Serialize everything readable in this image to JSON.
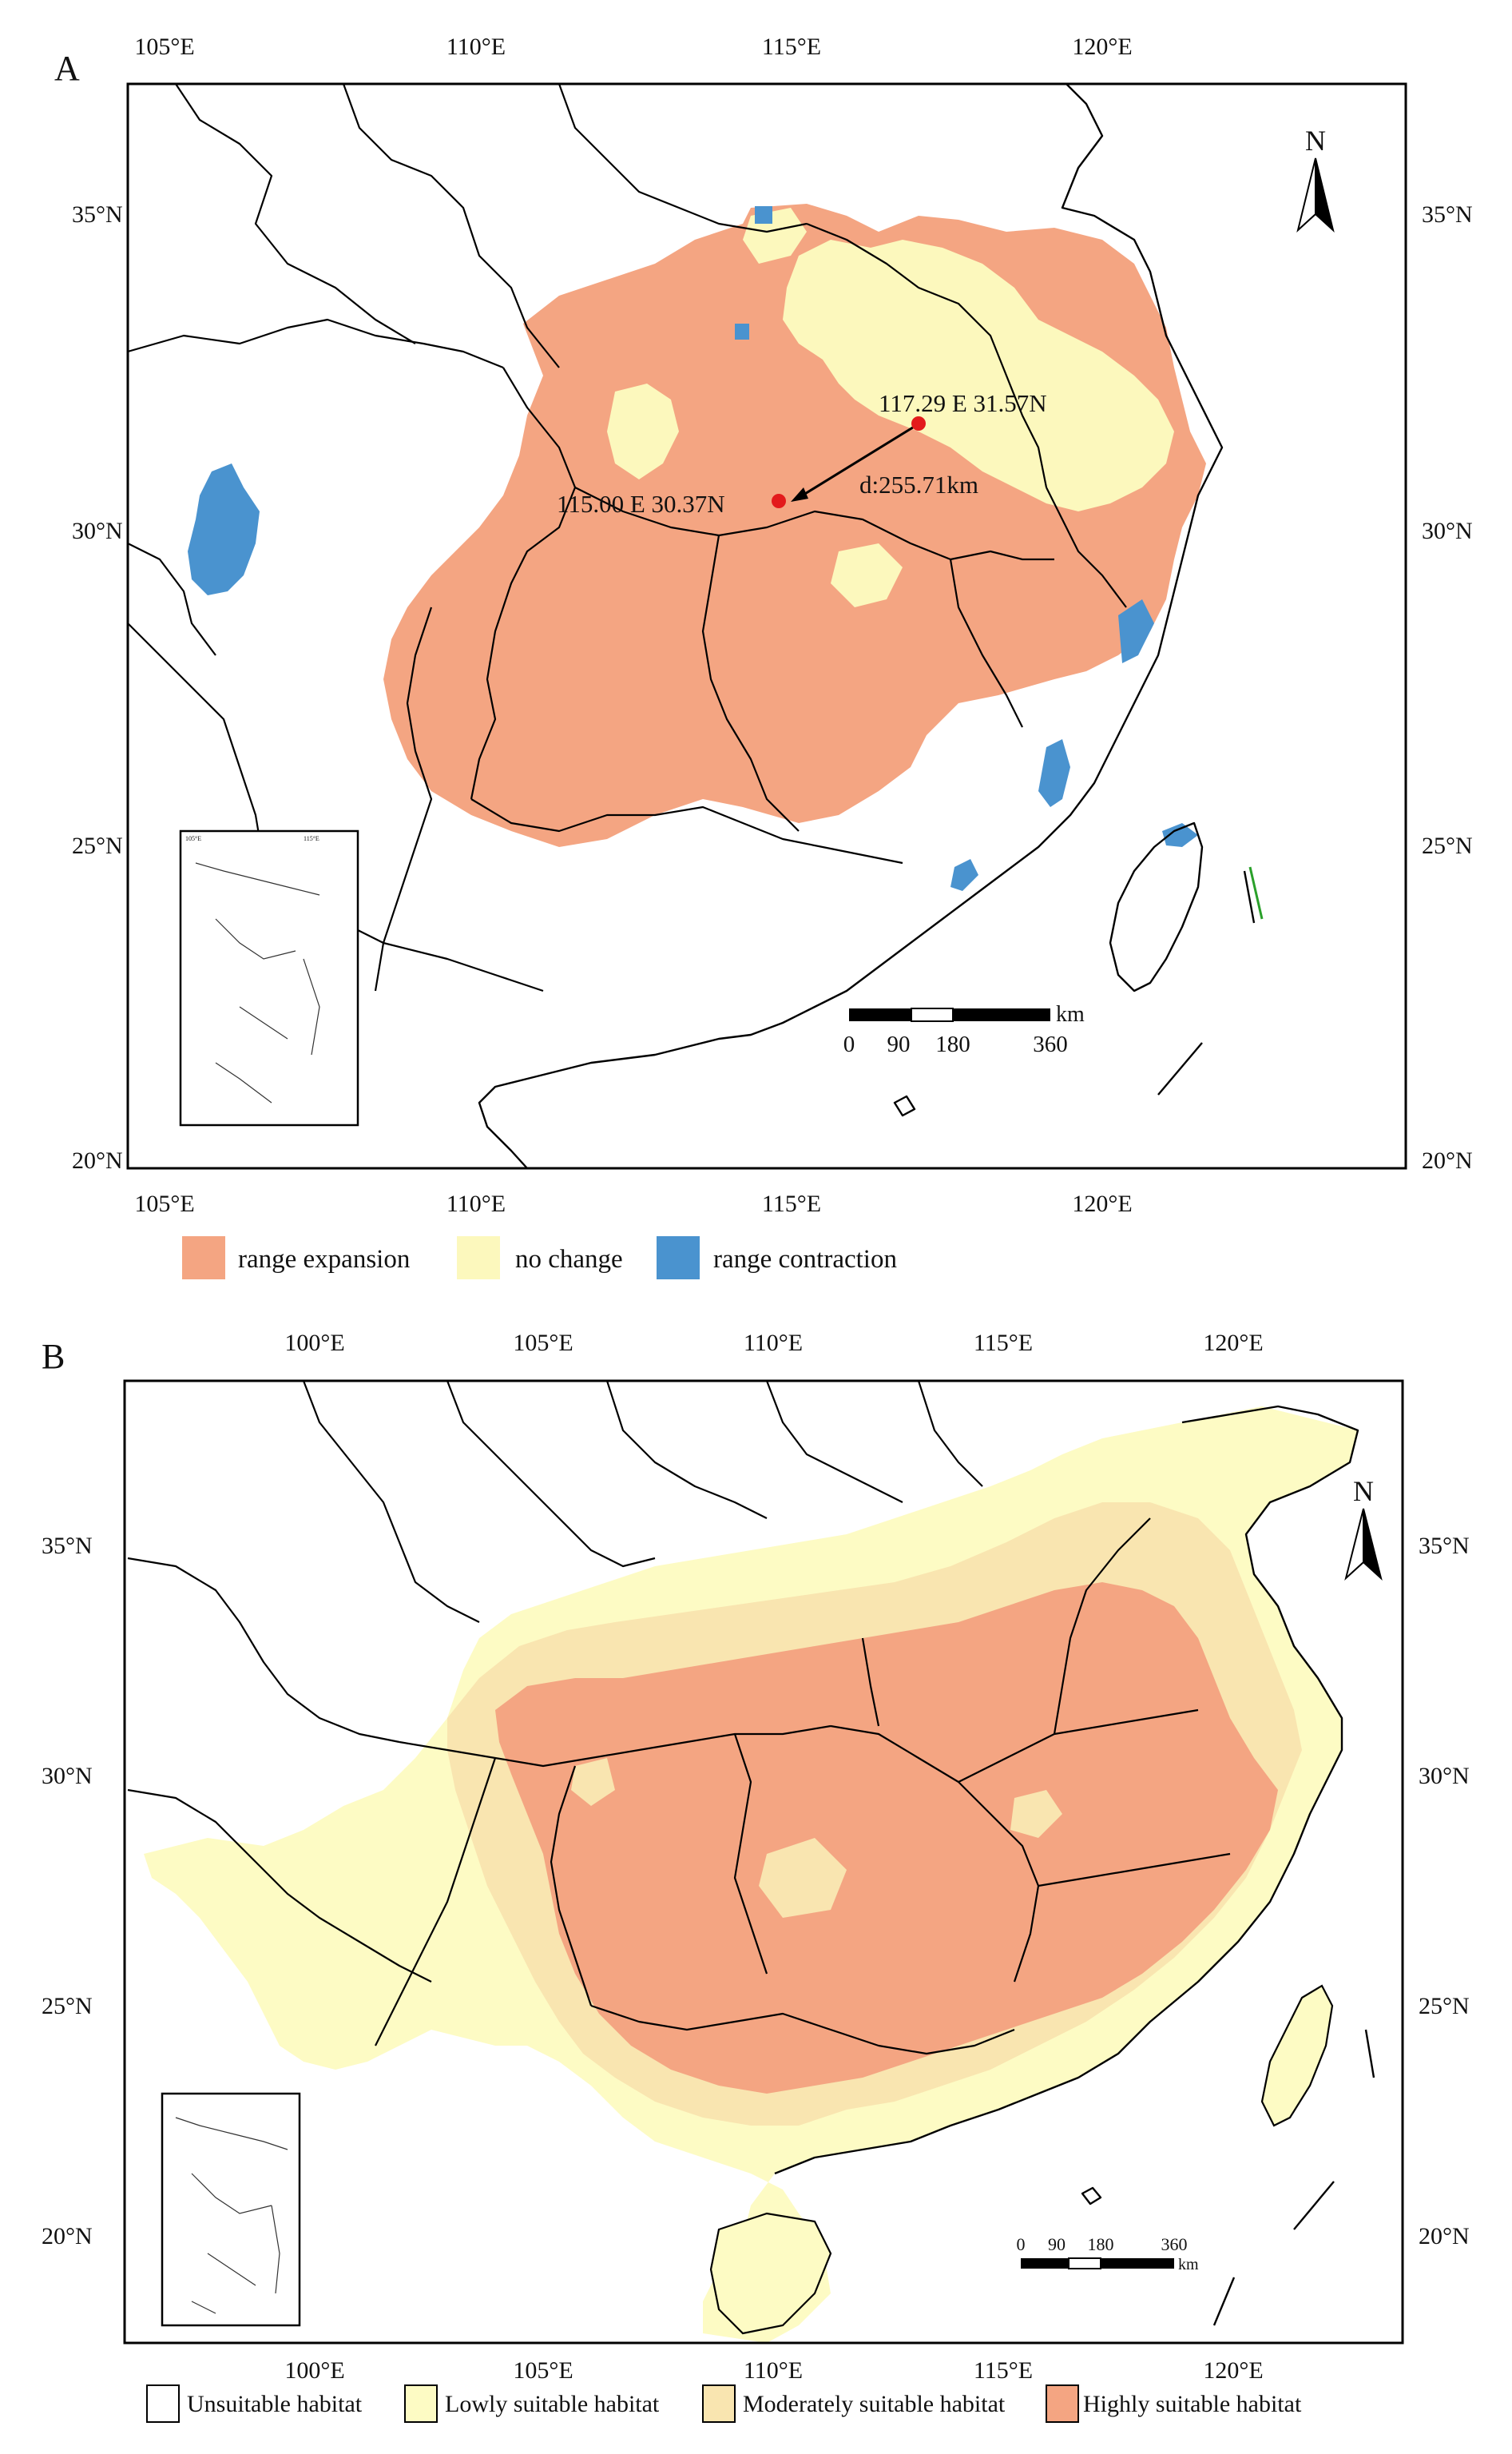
{
  "colors": {
    "range_expansion": "#f4a582",
    "no_change": "#fcf8bd",
    "range_contraction": "#4a93cf",
    "unsuitable": "#ffffff",
    "lowly_suitable": "#fdfbc4",
    "moderately_suitable": "#f9e5b0",
    "highly_suitable": "#f4a582",
    "centroid_point": "#e31a1c"
  },
  "panel_a": {
    "panel_label": "A",
    "lon_ticks": [
      "105°E",
      "110°E",
      "115°E",
      "120°E"
    ],
    "lat_ticks": [
      "35°N",
      "30°N",
      "25°N",
      "20°N"
    ],
    "north_arrow": "N",
    "point_current": "117.29 E 31.57N",
    "point_future": "115.00 E 30.37N",
    "distance": "d:255.71km",
    "scale": {
      "ticks": [
        "0",
        "90",
        "180",
        "360"
      ],
      "unit": "km"
    },
    "legend": [
      {
        "label": "range expansion",
        "color": "#f4a582"
      },
      {
        "label": "no change",
        "color": "#fcf8bd"
      },
      {
        "label": "range contraction",
        "color": "#4a93cf"
      }
    ]
  },
  "panel_b": {
    "panel_label": "B",
    "lon_ticks": [
      "100°E",
      "105°E",
      "110°E",
      "115°E",
      "120°E"
    ],
    "lat_ticks": [
      "35°N",
      "30°N",
      "25°N",
      "20°N"
    ],
    "north_arrow": "N",
    "scale": {
      "ticks": [
        "0",
        "90",
        "180",
        "360"
      ],
      "unit": "km"
    },
    "legend": [
      {
        "label": "Unsuitable habitat",
        "color": "#ffffff"
      },
      {
        "label": "Lowly suitable habitat",
        "color": "#fdfbc4"
      },
      {
        "label": "Moderately suitable habitat",
        "color": "#f9e5b0"
      },
      {
        "label": "Highly suitable habitat",
        "color": "#f4a582"
      }
    ]
  }
}
